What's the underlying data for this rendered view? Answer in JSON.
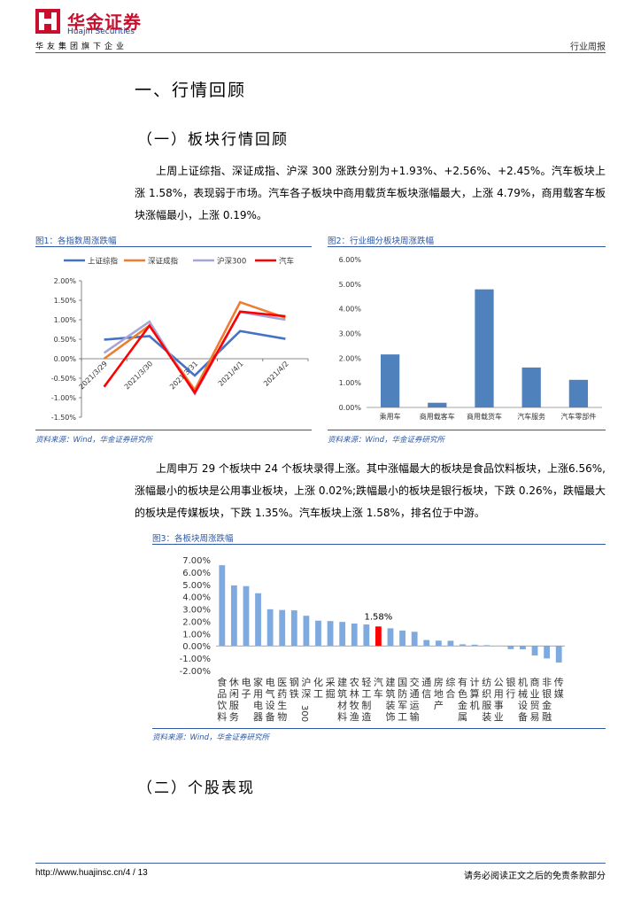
{
  "header": {
    "logo_cn": "华金证券",
    "logo_en": "Huajin Securities",
    "group": "华友集团旗下企业",
    "report_type": "行业周报"
  },
  "section1": {
    "title": "一、行情回顾"
  },
  "subsection1": {
    "title": "（一）板块行情回顾"
  },
  "para1": "上周上证综指、深证成指、沪深 300 涨跌分别为+1.93%、+2.56%、+2.45%。汽车板块上涨 1.58%，表现弱于市场。汽车各子板块中商用载货车板块涨幅最大，上涨 4.79%，商用载客车板块涨幅最小，上涨 0.19%。",
  "fig1": {
    "title": "图1：各指数周涨跌幅",
    "source": "资料来源：Wind，华金证券研究所"
  },
  "fig2": {
    "title": "图2：行业细分板块周涨跌幅",
    "source": "资料来源：Wind，华金证券研究所"
  },
  "para2": "上周申万 29 个板块中 24 个板块录得上涨。其中涨幅最大的板块是食品饮料板块，上涨6.56%,涨幅最小的板块是公用事业板块，上涨 0.02%;跌幅最小的板块是银行板块，下跌 0.26%，跌幅最大的板块是传媒板块，下跌 1.35%。汽车板块上涨 1.58%，排名位于中游。",
  "fig3": {
    "title": "图3：各板块周涨跌幅",
    "source": "资料来源：Wind，华金证券研究所"
  },
  "subsection2": {
    "title": "（二）个股表现"
  },
  "footer": {
    "url": "http://www.huajinsc.cn/4 / 13",
    "disclaimer": "请务必阅读正文之后的免责条款部分"
  },
  "colors": {
    "brand_red": "#c8102e",
    "brand_blue": "#2e58a6",
    "bar_blue": "#4f81bd",
    "highlight_red": "#ff0000"
  },
  "chart_data": [
    {
      "type": "line",
      "x": [
        "2021/3/29",
        "2021/3/30",
        "2021/3/31",
        "2021/4/1",
        "2021/4/2"
      ],
      "series": [
        {
          "name": "上证综指",
          "color": "#4472c4",
          "values": [
            0.49,
            0.58,
            -0.43,
            0.71,
            0.51
          ]
        },
        {
          "name": "深证成指",
          "color": "#ed7d31",
          "values": [
            0.0,
            0.85,
            -0.8,
            1.45,
            1.05
          ]
        },
        {
          "name": "沪深300",
          "color": "#a5a5d8",
          "values": [
            0.15,
            0.95,
            -0.9,
            1.2,
            1.0
          ]
        },
        {
          "name": "汽车",
          "color": "#ff0000",
          "values": [
            -0.72,
            0.85,
            -0.87,
            1.21,
            1.09
          ]
        }
      ],
      "yticks": [
        "2.00%",
        "1.50%",
        "1.00%",
        "0.50%",
        "0.00%",
        "-0.50%",
        "-1.00%",
        "-1.50%"
      ],
      "ylim": [
        -1.5,
        2.0
      ],
      "legend": "top"
    },
    {
      "type": "bar",
      "categories": [
        "乘用车",
        "商用载客车",
        "商用载货车",
        "汽车服务",
        "汽车零部件"
      ],
      "values": [
        2.15,
        0.19,
        4.79,
        1.62,
        1.12
      ],
      "yticks": [
        "6.00%",
        "5.00%",
        "4.00%",
        "3.00%",
        "2.00%",
        "1.00%",
        "0.00%"
      ],
      "ylim": [
        0,
        6
      ]
    },
    {
      "type": "bar",
      "categories": [
        "食品饮料",
        "休闲服务",
        "电子",
        "家用电器",
        "电气设备",
        "医药生物",
        "钢铁",
        "沪深300",
        "化工",
        "采掘",
        "建筑材料",
        "农林牧渔",
        "轻工制造",
        "汽车",
        "建筑装饰",
        "国防军工",
        "交通运输",
        "通信",
        "房地产",
        "综合",
        "有色金属",
        "计算机",
        "纺织服装",
        "公用事业",
        "银行",
        "机械设备",
        "商业贸易",
        "非银金融",
        "传媒"
      ],
      "values": [
        6.56,
        4.92,
        4.86,
        4.28,
        2.98,
        2.92,
        2.89,
        2.45,
        2.05,
        2.02,
        1.95,
        1.82,
        1.74,
        1.58,
        1.43,
        1.25,
        1.15,
        0.48,
        0.43,
        0.42,
        0.13,
        0.1,
        0.06,
        0.02,
        -0.26,
        -0.28,
        -0.78,
        -1.02,
        -1.35
      ],
      "highlight": "汽车",
      "highlight_label": "1.58%",
      "yticks": [
        "7.00%",
        "6.00%",
        "5.00%",
        "4.00%",
        "3.00%",
        "2.00%",
        "1.00%",
        "0.00%",
        "-1.00%",
        "-2.00%"
      ],
      "ylim": [
        -2,
        7
      ]
    }
  ]
}
